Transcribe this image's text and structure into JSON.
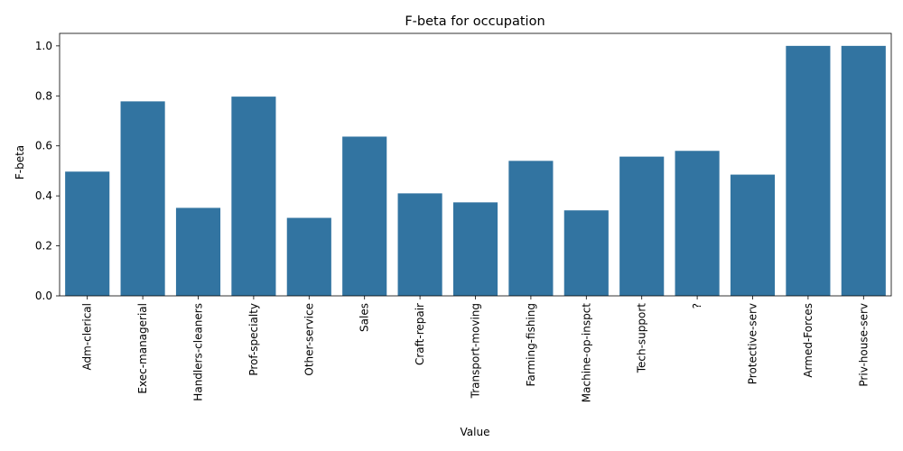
{
  "chart_data": {
    "type": "bar",
    "title": "F-beta for occupation",
    "xlabel": "Value",
    "ylabel": "F-beta",
    "ylim": [
      0,
      1.05
    ],
    "yticks": [
      "0.0",
      "0.2",
      "0.4",
      "0.6",
      "0.8",
      "1.0"
    ],
    "bar_color": "#3274a1",
    "grid": false,
    "categories": [
      "Adm-clerical",
      "Exec-managerial",
      "Handlers-cleaners",
      "Prof-specialty",
      "Other-service",
      "Sales",
      "Craft-repair",
      "Transport-moving",
      "Farming-fishing",
      "Machine-op-inspct",
      "Tech-support",
      "?",
      "Protective-serv",
      "Armed-Forces",
      "Priv-house-serv"
    ],
    "values": [
      0.497,
      0.778,
      0.352,
      0.797,
      0.312,
      0.637,
      0.41,
      0.374,
      0.54,
      0.342,
      0.557,
      0.58,
      0.485,
      1.0,
      1.0
    ]
  }
}
